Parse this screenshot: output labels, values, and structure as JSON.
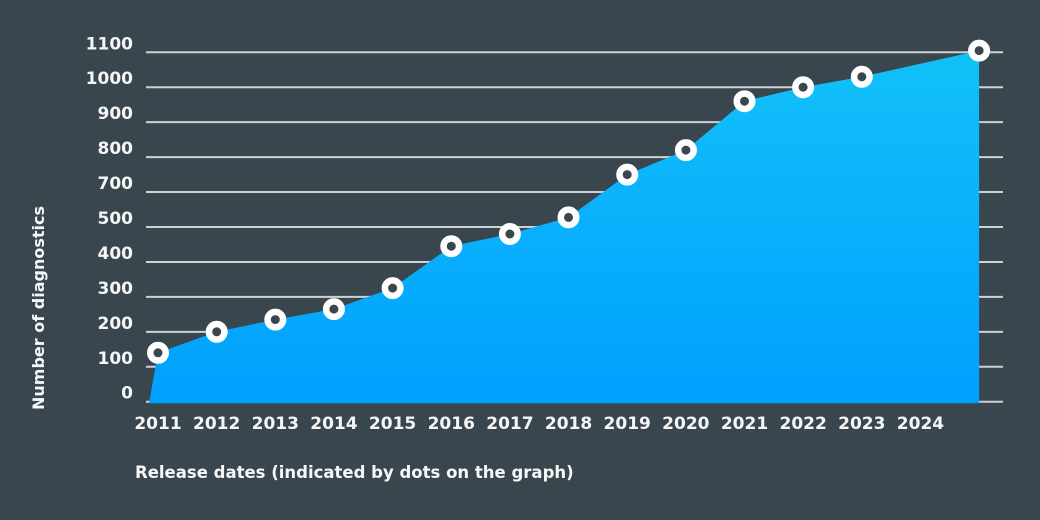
{
  "chart": {
    "background_color": "#3a464e",
    "grid_color": "#ccd2d6",
    "tick_text_color": "#f4f6f6",
    "area_top_color": "#12c1f8",
    "area_bottom_color": "#00a0fe",
    "dot_fill_color": "#3a464e",
    "dot_stroke_color": "#ffffff",
    "y_axis_title": "Number of diagnostics",
    "x_axis_caption": "Release dates (indicated by dots on the graph)"
  },
  "chart_data": {
    "type": "area",
    "title": "",
    "ylabel": "Number of diagnostics",
    "xlabel": "Release dates (indicated by dots on the graph)",
    "y_ticks": [
      0,
      100,
      200,
      300,
      400,
      500,
      700,
      800,
      900,
      1000,
      1100
    ],
    "y_axis_note": "Axis skips 600: the eleven gridlines are equally spaced, so the 500-700 interval spans 200 units in one grid step",
    "ylim_top_value": 1100,
    "x_tick_labels": [
      "2011",
      "2012",
      "2013",
      "2014",
      "2015",
      "2016",
      "2017",
      "2018",
      "2019",
      "2020",
      "2021",
      "2022",
      "2023",
      "2024"
    ],
    "grid": true,
    "legend": false,
    "points": [
      {
        "x": 2011,
        "value": 140
      },
      {
        "x": 2012,
        "value": 200
      },
      {
        "x": 2013,
        "value": 235
      },
      {
        "x": 2014,
        "value": 265
      },
      {
        "x": 2015,
        "value": 325
      },
      {
        "x": 2016,
        "value": 445
      },
      {
        "x": 2017,
        "value": 480
      },
      {
        "x": 2018,
        "value": 555
      },
      {
        "x": 2019,
        "value": 750
      },
      {
        "x": 2020,
        "value": 820
      },
      {
        "x": 2021,
        "value": 960
      },
      {
        "x": 2022,
        "value": 1000
      },
      {
        "x": 2023,
        "value": 1030
      },
      {
        "x": 2025,
        "value": 1105
      }
    ],
    "note": "No dot at 2024; the line runs straight from the 2023 dot to a final dot one year-step beyond the 2024 label"
  }
}
